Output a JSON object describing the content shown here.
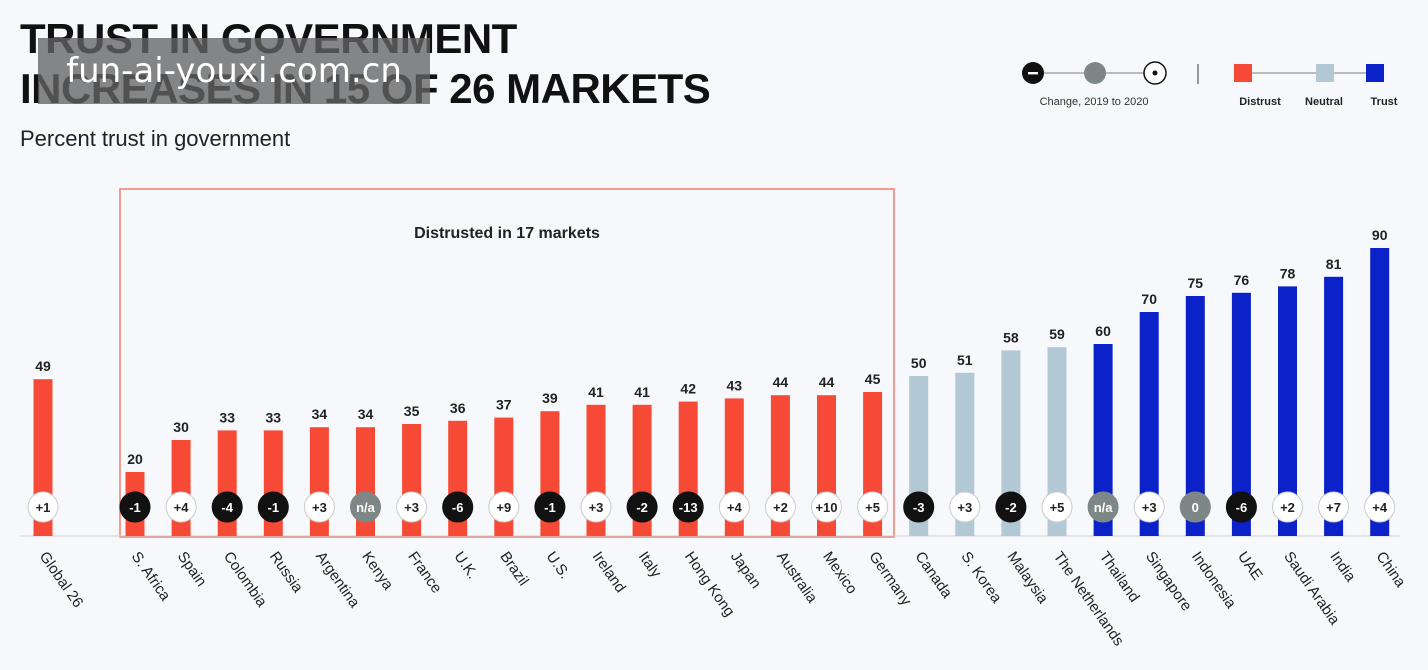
{
  "title_line1": "TRUST IN GOVERNMENT",
  "title_line2": "INCREASES IN 15 OF 26 MARKETS",
  "subtitle": "Percent trust in government",
  "watermark": "fun-ai-youxi.com.cn",
  "legend": {
    "change_label": "Change, 2019 to 2020",
    "distrust": "Distrust",
    "neutral": "Neutral",
    "trust": "Trust"
  },
  "annotation": "Distrusted in 17 markets",
  "colors": {
    "distrust": "#f74a36",
    "neutral": "#b2c8d4",
    "trust": "#0a22c8",
    "decrease": "#111111",
    "unchanged": "#7d8886",
    "increase": "#ffffff"
  },
  "chart_data": {
    "type": "bar",
    "ylim": [
      0,
      100
    ],
    "categories": [
      "Global 26",
      "S. Africa",
      "Spain",
      "Colombia",
      "Russia",
      "Argentina",
      "Kenya",
      "France",
      "U.K.",
      "Brazil",
      "U.S.",
      "Ireland",
      "Italy",
      "Hong Kong",
      "Japan",
      "Australia",
      "Mexico",
      "Germany",
      "Canada",
      "S. Korea",
      "Malaysia",
      "The Netherlands",
      "Thailand",
      "Singapore",
      "Indonesia",
      "UAE",
      "Saudi Arabia",
      "India",
      "China"
    ],
    "values": [
      49,
      20,
      30,
      33,
      33,
      34,
      34,
      35,
      36,
      37,
      39,
      41,
      41,
      42,
      43,
      44,
      44,
      45,
      50,
      51,
      58,
      59,
      60,
      70,
      75,
      76,
      78,
      81,
      90
    ],
    "level": [
      "distrust",
      "distrust",
      "distrust",
      "distrust",
      "distrust",
      "distrust",
      "distrust",
      "distrust",
      "distrust",
      "distrust",
      "distrust",
      "distrust",
      "distrust",
      "distrust",
      "distrust",
      "distrust",
      "distrust",
      "distrust",
      "neutral",
      "neutral",
      "neutral",
      "neutral",
      "trust",
      "trust",
      "trust",
      "trust",
      "trust",
      "trust",
      "trust"
    ],
    "change": [
      "+1",
      "-1",
      "+4",
      "-4",
      "-1",
      "+3",
      "n/a",
      "+3",
      "-6",
      "+9",
      "-1",
      "+3",
      "-2",
      "-13",
      "+4",
      "+2",
      "+10",
      "+5",
      "-3",
      "+3",
      "-2",
      "+5",
      "n/a",
      "+3",
      "0",
      "-6",
      "+2",
      "+7",
      "+4"
    ],
    "change_type": [
      "increase",
      "decrease",
      "increase",
      "decrease",
      "decrease",
      "increase",
      "unchanged",
      "increase",
      "decrease",
      "increase",
      "decrease",
      "increase",
      "decrease",
      "decrease",
      "increase",
      "increase",
      "increase",
      "increase",
      "decrease",
      "increase",
      "decrease",
      "increase",
      "unchanged",
      "increase",
      "unchanged",
      "decrease",
      "increase",
      "increase",
      "increase"
    ]
  }
}
